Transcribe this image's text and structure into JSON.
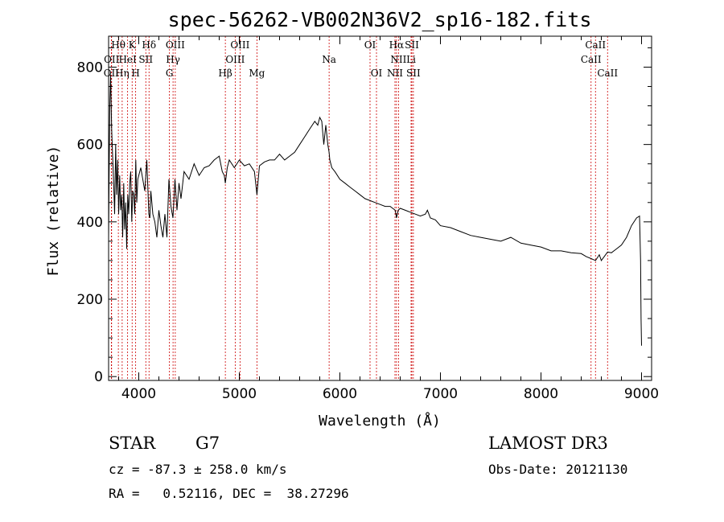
{
  "chart_data": {
    "type": "line",
    "title": "spec-56262-VB002N36V2_sp16-182.fits",
    "xlabel": "Wavelength (Å)",
    "ylabel": "Flux (relative)",
    "xlim": [
      3700,
      9100
    ],
    "ylim": [
      -10,
      880
    ],
    "xticks": [
      4000,
      5000,
      6000,
      7000,
      8000,
      9000
    ],
    "yticks": [
      0,
      200,
      400,
      600,
      800
    ],
    "x": [
      3700,
      3705,
      3712,
      3720,
      3730,
      3740,
      3750,
      3760,
      3770,
      3780,
      3790,
      3800,
      3810,
      3820,
      3830,
      3840,
      3850,
      3860,
      3870,
      3880,
      3890,
      3900,
      3910,
      3920,
      3930,
      3940,
      3950,
      3960,
      3970,
      3980,
      3990,
      4000,
      4020,
      4040,
      4060,
      4080,
      4100,
      4110,
      4120,
      4140,
      4160,
      4180,
      4200,
      4220,
      4240,
      4260,
      4280,
      4300,
      4320,
      4340,
      4360,
      4380,
      4400,
      4420,
      4450,
      4500,
      4550,
      4600,
      4650,
      4700,
      4750,
      4800,
      4830,
      4850,
      4861,
      4880,
      4900,
      4950,
      5000,
      5050,
      5100,
      5150,
      5175,
      5200,
      5250,
      5300,
      5350,
      5400,
      5450,
      5500,
      5550,
      5600,
      5650,
      5700,
      5750,
      5780,
      5800,
      5820,
      5840,
      5860,
      5880,
      5893,
      5900,
      5920,
      5950,
      6000,
      6050,
      6100,
      6150,
      6200,
      6250,
      6300,
      6350,
      6400,
      6450,
      6500,
      6550,
      6563,
      6580,
      6600,
      6650,
      6700,
      6750,
      6800,
      6850,
      6870,
      6900,
      6950,
      7000,
      7100,
      7200,
      7300,
      7400,
      7500,
      7600,
      7700,
      7800,
      7900,
      8000,
      8100,
      8200,
      8300,
      8400,
      8450,
      8498,
      8542,
      8580,
      8600,
      8662,
      8700,
      8750,
      8800,
      8850,
      8900,
      8950,
      8980,
      8990,
      8995,
      9000
    ],
    "y": [
      360,
      520,
      700,
      780,
      640,
      570,
      500,
      420,
      600,
      470,
      560,
      420,
      520,
      430,
      470,
      360,
      500,
      380,
      450,
      330,
      470,
      420,
      500,
      530,
      400,
      480,
      470,
      420,
      560,
      450,
      510,
      520,
      540,
      510,
      480,
      560,
      420,
      410,
      480,
      420,
      400,
      360,
      430,
      390,
      360,
      420,
      360,
      510,
      440,
      410,
      510,
      430,
      500,
      460,
      530,
      510,
      550,
      520,
      540,
      545,
      560,
      570,
      530,
      520,
      500,
      540,
      560,
      540,
      560,
      545,
      550,
      530,
      470,
      545,
      555,
      560,
      560,
      575,
      560,
      570,
      580,
      600,
      620,
      640,
      660,
      650,
      670,
      660,
      600,
      650,
      600,
      580,
      560,
      540,
      530,
      510,
      500,
      490,
      480,
      470,
      460,
      455,
      450,
      445,
      440,
      440,
      430,
      410,
      430,
      435,
      430,
      425,
      420,
      415,
      420,
      430,
      410,
      405,
      390,
      385,
      375,
      365,
      360,
      355,
      350,
      360,
      345,
      340,
      335,
      325,
      325,
      320,
      318,
      310,
      305,
      300,
      315,
      300,
      322,
      320,
      330,
      340,
      360,
      390,
      410,
      415,
      300,
      150,
      80
    ]
  },
  "spectral_lines": [
    {
      "name": "OII",
      "wave": 3727,
      "row": 2
    },
    {
      "name": "Hθ",
      "wave": 3797,
      "row": 0
    },
    {
      "name": "OII",
      "wave": 3730,
      "row": 1
    },
    {
      "name": "Hη",
      "wave": 3835,
      "row": 2
    },
    {
      "name": "HeI",
      "wave": 3889,
      "row": 1
    },
    {
      "name": "K",
      "wave": 3934,
      "row": 0
    },
    {
      "name": "H",
      "wave": 3969,
      "row": 2
    },
    {
      "name": "SII",
      "wave": 4070,
      "row": 1
    },
    {
      "name": "Hδ",
      "wave": 4102,
      "row": 0
    },
    {
      "name": "OIII",
      "wave": 4363,
      "row": 0
    },
    {
      "name": "Hγ",
      "wave": 4341,
      "row": 1
    },
    {
      "name": "G",
      "wave": 4305,
      "row": 2
    },
    {
      "name": "OIII",
      "wave": 4959,
      "row": 1
    },
    {
      "name": "OIII",
      "wave": 5007,
      "row": 0
    },
    {
      "name": "Hβ",
      "wave": 4861,
      "row": 2
    },
    {
      "name": "Mg",
      "wave": 5175,
      "row": 2
    },
    {
      "name": "Na",
      "wave": 5893,
      "row": 1
    },
    {
      "name": "OI",
      "wave": 6300,
      "row": 0
    },
    {
      "name": "OI",
      "wave": 6364,
      "row": 2
    },
    {
      "name": "Hα",
      "wave": 6563,
      "row": 0
    },
    {
      "name": "NII",
      "wave": 6583,
      "row": 1
    },
    {
      "name": "NII",
      "wave": 6548,
      "row": 2
    },
    {
      "name": "SII",
      "wave": 6716,
      "row": 0
    },
    {
      "name": "Li",
      "wave": 6708,
      "row": 1
    },
    {
      "name": "SII",
      "wave": 6731,
      "row": 2
    },
    {
      "name": "CaII",
      "wave": 8498,
      "row": 1
    },
    {
      "name": "CaII",
      "wave": 8542,
      "row": 0
    },
    {
      "name": "CaII",
      "wave": 8662,
      "row": 2
    }
  ],
  "info": {
    "obj_class": "STAR",
    "subclass": "G7",
    "survey": "LAMOST DR3",
    "cz": "cz = -87.3 ± 258.0 km/s",
    "obs_date": "Obs-Date: 20121130",
    "coords": "RA =   0.52116, DEC =  38.27296"
  }
}
